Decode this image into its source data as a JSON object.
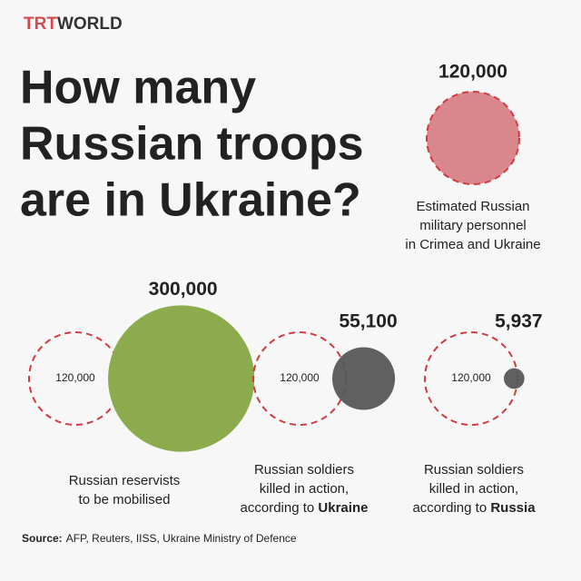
{
  "brand": {
    "first": "TRT",
    "second": "WORLD"
  },
  "chart_data": {
    "type": "bubble",
    "title": [
      "How many",
      "Russian troops",
      "are in Ukraine?"
    ],
    "reference": {
      "value": 120000,
      "value_label": "120,000",
      "color": "#d9868c",
      "outline_color": "#cf3b41",
      "caption": [
        "Estimated Russian",
        "military personnel",
        "in Crimea and Ukraine"
      ]
    },
    "values": [
      300000,
      55100,
      5937
    ],
    "value_labels": [
      "300,000",
      "55,100",
      "5,937"
    ],
    "colors": [
      "#8cab4c",
      "#575757",
      "#575757"
    ],
    "label_colors": [
      "#7f9f3d",
      "#222222",
      "#222222"
    ],
    "captions": [
      {
        "lines": [
          "Russian reservists",
          "to be mobilised"
        ]
      },
      {
        "lines": [
          "Russian soldiers",
          "killed in action,",
          "according to "
        ],
        "bold": "Ukraine"
      },
      {
        "lines": [
          "Russian soldiers",
          "killed in action,",
          "according to "
        ],
        "bold": "Russia"
      }
    ]
  },
  "source": {
    "label": "Source:",
    "text": "AFP, Reuters, IISS, Ukraine Ministry of Defence"
  }
}
